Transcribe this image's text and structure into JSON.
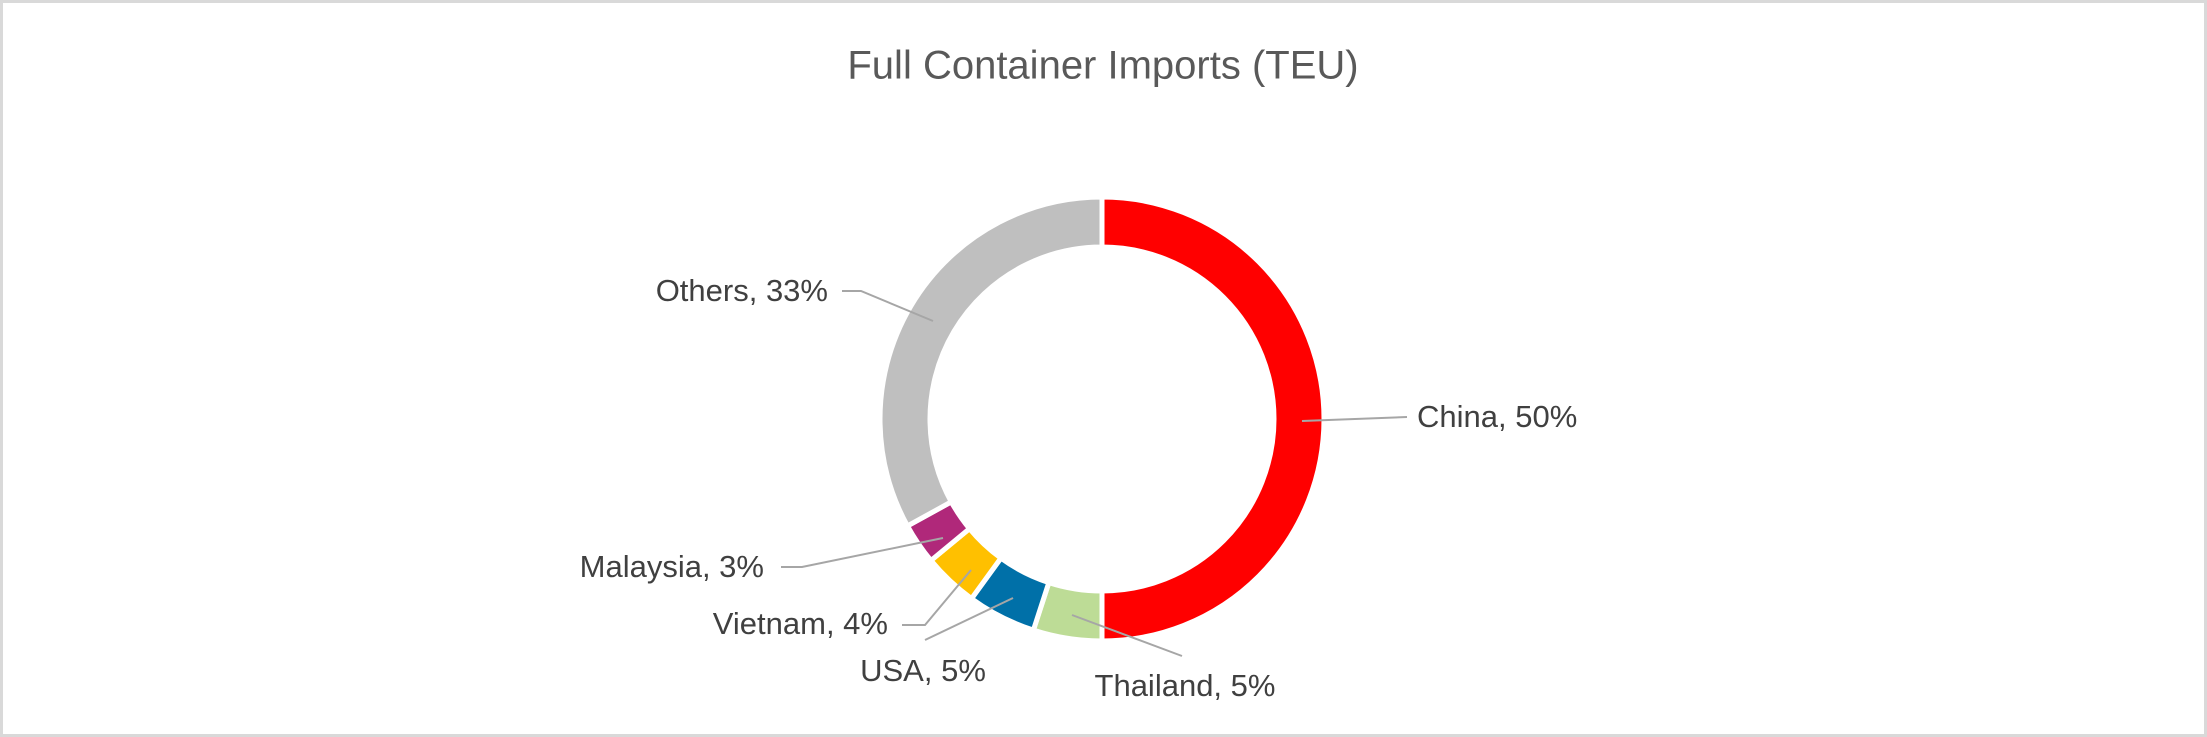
{
  "chart_data": {
    "type": "pie",
    "title": "Full Container Imports (TEU)",
    "values": [
      50,
      5,
      5,
      4,
      3,
      33
    ],
    "value_labels": [
      "China, 50%",
      "Thailand, 5%",
      "USA, 5%",
      "Vietnam, 4%",
      "Malaysia, 3%",
      "Others, 33%"
    ],
    "colors": [
      "#ff0000",
      "#bddc96",
      "#0070a8",
      "#ffc000",
      "#b0287a",
      "#bfbfbf"
    ],
    "donut": true
  }
}
